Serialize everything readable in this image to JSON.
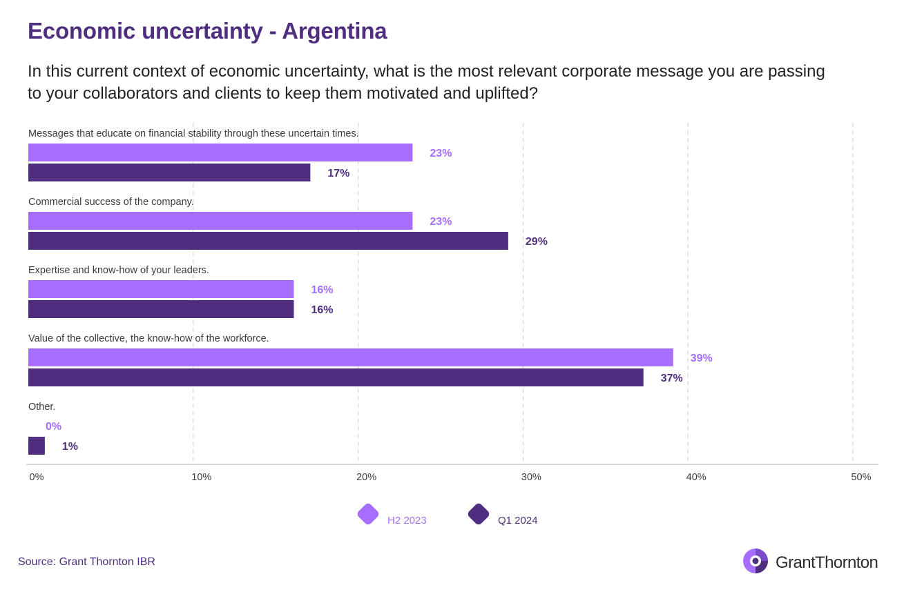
{
  "title": "Economic uncertainty - Argentina",
  "subtitle": "In this current context of economic uncertainty, what is the most relevant corporate message you are passing to your collaborators and clients to keep them motivated and uplifted?",
  "source": "Source: Grant Thornton IBR",
  "logo": {
    "text": "GrantThornton",
    "icon": "grant-thornton-logo-icon"
  },
  "colors": {
    "h2_2023": "#a56eff",
    "q1_2024": "#4f2d7f",
    "title": "#4f2d7f",
    "grid": "#d5d5d5"
  },
  "chart_data": {
    "type": "bar",
    "orientation": "horizontal",
    "categories": [
      "Messages that educate on financial stability through these uncertain times.",
      "Commercial success of the company.",
      "Expertise and know-how of your leaders.",
      "Value of the collective, the know-how of the workforce.",
      "Other."
    ],
    "series": [
      {
        "name": "H2 2023",
        "values": [
          23.3,
          23.3,
          16.1,
          39.1,
          0
        ],
        "labels": [
          "23%",
          "23%",
          "16%",
          "39%",
          "0%"
        ]
      },
      {
        "name": "Q1 2024",
        "values": [
          17.1,
          29.1,
          16.1,
          37.3,
          1
        ],
        "labels": [
          "17%",
          "29%",
          "16%",
          "37%",
          "1%"
        ]
      }
    ],
    "xlim": [
      0,
      50
    ],
    "ticks": [
      "0%",
      "10%",
      "20%",
      "30%",
      "40%",
      "50%"
    ],
    "grid": true,
    "legend_position": "bottom-center"
  }
}
